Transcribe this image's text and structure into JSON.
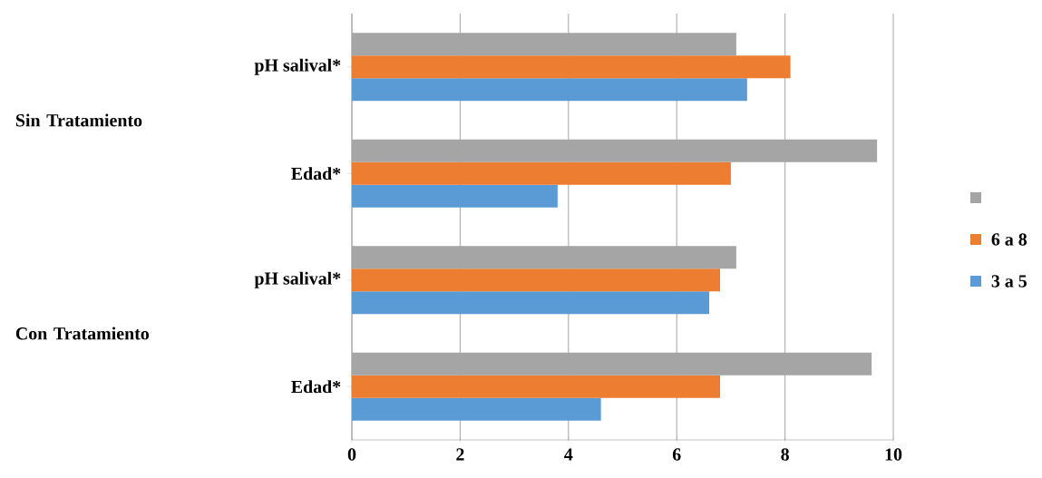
{
  "chart_data": {
    "type": "bar",
    "orientation": "horizontal",
    "categories": [
      "pH salival*",
      "Edad*",
      "pH salival*",
      "Edad*"
    ],
    "series": [
      {
        "name": "3 a 5",
        "color": "#5b9bd5",
        "values": [
          7.3,
          3.8,
          6.6,
          4.6
        ]
      },
      {
        "name": "6 a 8",
        "color": "#ed7d31",
        "values": [
          8.1,
          7.0,
          6.8,
          6.8
        ]
      },
      {
        "color": "#a5a5a5",
        "values": [
          7.1,
          9.7,
          7.1,
          9.6
        ]
      }
    ],
    "xlim": [
      0,
      10
    ],
    "xticks": [
      0,
      2,
      4,
      6,
      8,
      10
    ],
    "grid": "x",
    "legend": "right",
    "annotations": [
      "Sin Tratamiento",
      "Con Tratamiento"
    ]
  }
}
